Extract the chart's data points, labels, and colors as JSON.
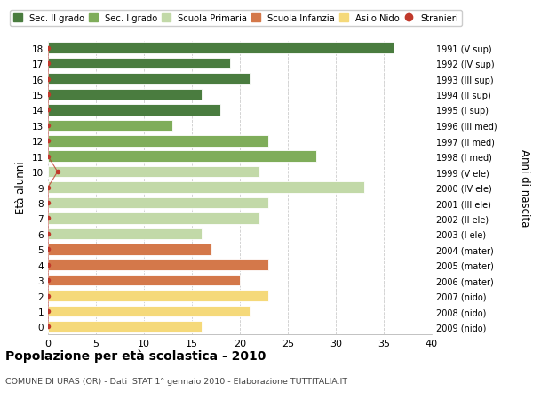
{
  "ages": [
    18,
    17,
    16,
    15,
    14,
    13,
    12,
    11,
    10,
    9,
    8,
    7,
    6,
    5,
    4,
    3,
    2,
    1,
    0
  ],
  "years": [
    "1991 (V sup)",
    "1992 (IV sup)",
    "1993 (III sup)",
    "1994 (II sup)",
    "1995 (I sup)",
    "1996 (III med)",
    "1997 (II med)",
    "1998 (I med)",
    "1999 (V ele)",
    "2000 (IV ele)",
    "2001 (III ele)",
    "2002 (II ele)",
    "2003 (I ele)",
    "2004 (mater)",
    "2005 (mater)",
    "2006 (mater)",
    "2007 (nido)",
    "2008 (nido)",
    "2009 (nido)"
  ],
  "values": [
    36,
    19,
    21,
    16,
    18,
    13,
    23,
    28,
    22,
    33,
    23,
    22,
    16,
    17,
    23,
    20,
    23,
    21,
    16
  ],
  "stranieri": [
    0,
    0,
    0,
    0,
    0,
    0,
    0,
    0,
    1,
    0,
    0,
    0,
    0,
    0,
    0,
    0,
    0,
    0,
    0
  ],
  "bar_colors": [
    "#4a7c3f",
    "#4a7c3f",
    "#4a7c3f",
    "#4a7c3f",
    "#4a7c3f",
    "#7fad5a",
    "#7fad5a",
    "#7fad5a",
    "#c2d9a8",
    "#c2d9a8",
    "#c2d9a8",
    "#c2d9a8",
    "#c2d9a8",
    "#d4784a",
    "#d4784a",
    "#d4784a",
    "#f5d97a",
    "#f5d97a",
    "#f5d97a"
  ],
  "legend_labels": [
    "Sec. II grado",
    "Sec. I grado",
    "Scuola Primaria",
    "Scuola Infanzia",
    "Asilo Nido",
    "Stranieri"
  ],
  "legend_colors": [
    "#4a7c3f",
    "#7fad5a",
    "#c2d9a8",
    "#d4784a",
    "#f5d97a",
    "#c0392b"
  ],
  "ylabel": "Età alunni",
  "ylabel_right": "Anni di nascita",
  "title": "Popolazione per età scolastica - 2010",
  "subtitle": "COMUNE DI URAS (OR) - Dati ISTAT 1° gennaio 2010 - Elaborazione TUTTITALIA.IT",
  "xlim": [
    0,
    40
  ],
  "xticks": [
    0,
    5,
    10,
    15,
    20,
    25,
    30,
    35,
    40
  ],
  "bg_color": "#ffffff",
  "plot_bg_color": "#ffffff",
  "grid_color": "#cccccc",
  "stranieri_color": "#c0392b"
}
